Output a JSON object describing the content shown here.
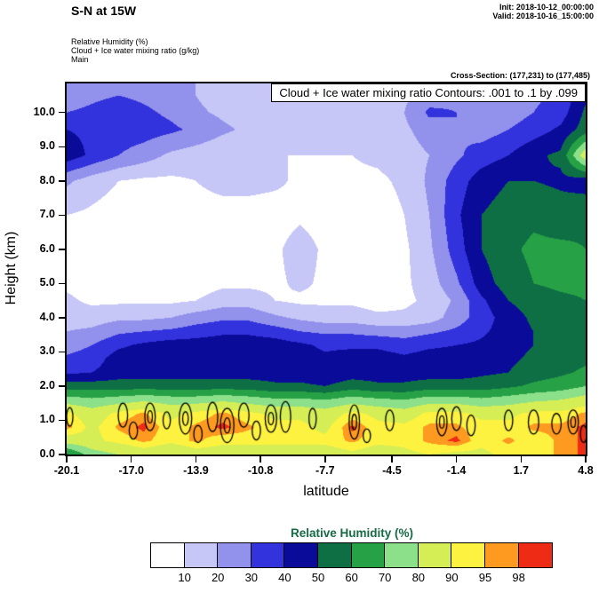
{
  "header": {
    "title": "S-N at 15W",
    "init_time": "Init: 2018-10-12_00:00:00",
    "valid_time": "Valid: 2018-10-16_15:00:00",
    "field_lines": [
      "Relative Humidity  (%)",
      "Cloud + Ice water mixing ratio   (g/kg)",
      "Main"
    ],
    "cross_section": "Cross-Section: (177,231) to (177,485)"
  },
  "colorbar": {
    "title": "Relative Humidity  (%)",
    "title_color": "#156b45",
    "tick_labels": [
      "10",
      "20",
      "30",
      "40",
      "50",
      "60",
      "70",
      "80",
      "90",
      "95",
      "98"
    ]
  },
  "chart_data": {
    "type": "heatmap",
    "title": "Cloud + Ice water mixing ratio Contours: .001 to .1 by .099",
    "xlabel": "latitude",
    "ylabel": "Height (km)",
    "x_range": [
      -20.1,
      4.8
    ],
    "y_range": [
      0,
      10.85
    ],
    "x_ticks": [
      -20.1,
      -17.0,
      -13.9,
      -10.8,
      -7.7,
      -4.5,
      -1.4,
      1.7,
      4.8
    ],
    "x_tick_labels": [
      "-20.1",
      "-17.0",
      "-13.9",
      "-10.8",
      "-7.7",
      "-4.5",
      "-1.4",
      "1.7",
      "4.8"
    ],
    "y_ticks": [
      0,
      1,
      2,
      3,
      4,
      5,
      6,
      7,
      8,
      9,
      10
    ],
    "y_tick_labels": [
      "0.0",
      "1.0",
      "2.0",
      "3.0",
      "4.0",
      "5.0",
      "6.0",
      "7.0",
      "8.0",
      "9.0",
      "10.0"
    ],
    "rh_levels": [
      10,
      20,
      30,
      40,
      50,
      60,
      70,
      80,
      90,
      95,
      98
    ],
    "level_colors": [
      "#ffffff",
      "#c6c6f7",
      "#9292ec",
      "#3333dd",
      "#0b0b9a",
      "#0e6f45",
      "#27a145",
      "#8ce08a",
      "#d5ee55",
      "#fdf23f",
      "#ff9a21",
      "#ee2c15"
    ],
    "x": [
      -20.1,
      -18.9,
      -17.6,
      -16.4,
      -15.1,
      -13.9,
      -12.6,
      -11.4,
      -10.1,
      -8.9,
      -7.7,
      -6.4,
      -5.2,
      -3.9,
      -2.7,
      -1.4,
      -0.2,
      1.1,
      2.3,
      3.6,
      4.8
    ],
    "z_levels": [
      0,
      0.4,
      0.8,
      1.2,
      1.6,
      2.0,
      2.4,
      2.8,
      3.2,
      3.6,
      4.0,
      4.5,
      5.0,
      6.0,
      7.0,
      8.0,
      8.75,
      9.5,
      10.0,
      10.5
    ],
    "rh_grid": [
      [
        58,
        75,
        80,
        85,
        80,
        85,
        85,
        85,
        85,
        85,
        85,
        88,
        85,
        88,
        90,
        88,
        88,
        92,
        92,
        96,
        99
      ],
      [
        85,
        88,
        92,
        96,
        92,
        96,
        92,
        92,
        92,
        92,
        92,
        96,
        92,
        92,
        96,
        99,
        92,
        96,
        92,
        96,
        99
      ],
      [
        97,
        88,
        96,
        99,
        92,
        96,
        99,
        96,
        92,
        92,
        88,
        99,
        92,
        92,
        96,
        96,
        92,
        92,
        96,
        96,
        99
      ],
      [
        92,
        85,
        92,
        96,
        88,
        92,
        96,
        92,
        88,
        88,
        85,
        92,
        88,
        85,
        92,
        92,
        88,
        88,
        92,
        92,
        96
      ],
      [
        75,
        72,
        75,
        78,
        75,
        75,
        78,
        75,
        72,
        72,
        70,
        75,
        72,
        70,
        75,
        75,
        72,
        75,
        78,
        80,
        85
      ],
      [
        55,
        55,
        55,
        55,
        55,
        55,
        55,
        55,
        52,
        52,
        50,
        55,
        52,
        52,
        55,
        55,
        55,
        58,
        62,
        65,
        70
      ],
      [
        38,
        40,
        45,
        45,
        45,
        45,
        45,
        45,
        45,
        45,
        42,
        45,
        45,
        45,
        45,
        45,
        48,
        50,
        55,
        58,
        62
      ],
      [
        32,
        35,
        45,
        46,
        46,
        46,
        46,
        46,
        46,
        45,
        42,
        45,
        45,
        42,
        45,
        45,
        45,
        48,
        52,
        55,
        58
      ],
      [
        25,
        30,
        38,
        42,
        45,
        45,
        46,
        46,
        45,
        42,
        38,
        38,
        38,
        35,
        38,
        40,
        42,
        46,
        50,
        52,
        55
      ],
      [
        20,
        22,
        28,
        30,
        32,
        35,
        38,
        38,
        35,
        30,
        28,
        28,
        26,
        25,
        28,
        32,
        38,
        45,
        50,
        52,
        55
      ],
      [
        15,
        15,
        18,
        18,
        20,
        25,
        28,
        28,
        22,
        18,
        15,
        15,
        12,
        12,
        15,
        25,
        35,
        45,
        52,
        55,
        58
      ],
      [
        12,
        8,
        8,
        8,
        8,
        10,
        15,
        15,
        10,
        8,
        8,
        8,
        6,
        8,
        12,
        22,
        38,
        50,
        55,
        58,
        60
      ],
      [
        8,
        5,
        5,
        5,
        5,
        5,
        8,
        8,
        8,
        12,
        8,
        5,
        5,
        8,
        15,
        28,
        45,
        55,
        60,
        62,
        62
      ],
      [
        8,
        5,
        5,
        5,
        5,
        5,
        5,
        5,
        8,
        15,
        8,
        5,
        5,
        8,
        18,
        35,
        50,
        58,
        62,
        62,
        60
      ],
      [
        10,
        8,
        5,
        5,
        5,
        5,
        5,
        5,
        5,
        8,
        5,
        5,
        5,
        10,
        20,
        38,
        50,
        55,
        58,
        55,
        58
      ],
      [
        22,
        15,
        10,
        8,
        8,
        10,
        14,
        14,
        12,
        8,
        8,
        8,
        8,
        12,
        22,
        35,
        45,
        50,
        50,
        48,
        45
      ],
      [
        46,
        38,
        30,
        25,
        18,
        15,
        12,
        10,
        10,
        10,
        10,
        10,
        12,
        15,
        20,
        28,
        35,
        40,
        48,
        52,
        88
      ],
      [
        40,
        38,
        36,
        35,
        32,
        28,
        22,
        18,
        16,
        15,
        18,
        15,
        15,
        18,
        25,
        30,
        25,
        30,
        35,
        42,
        55
      ],
      [
        30,
        32,
        35,
        32,
        28,
        22,
        18,
        15,
        15,
        15,
        20,
        15,
        15,
        20,
        32,
        30,
        22,
        25,
        30,
        35,
        52
      ],
      [
        25,
        28,
        30,
        28,
        25,
        20,
        15,
        15,
        12,
        15,
        18,
        12,
        12,
        18,
        25,
        28,
        20,
        22,
        28,
        32,
        48
      ]
    ],
    "cloud_contour_levels": [
      0.001,
      0.1
    ],
    "cloud_contour_ellipses": [
      {
        "lat": -19.95,
        "z": 1.1,
        "w": 0.3,
        "h": 0.55
      },
      {
        "lat": -17.4,
        "z": 1.15,
        "w": 0.45,
        "h": 0.7
      },
      {
        "lat": -16.9,
        "z": 0.7,
        "w": 0.4,
        "h": 0.5
      },
      {
        "lat": -16.1,
        "z": 1.1,
        "w": 0.5,
        "h": 0.8,
        "double": true
      },
      {
        "lat": -15.3,
        "z": 1.0,
        "w": 0.35,
        "h": 0.5
      },
      {
        "lat": -14.4,
        "z": 1.05,
        "w": 0.6,
        "h": 0.9,
        "double": true
      },
      {
        "lat": -13.8,
        "z": 0.6,
        "w": 0.4,
        "h": 0.5
      },
      {
        "lat": -13.1,
        "z": 1.1,
        "w": 0.5,
        "h": 0.85
      },
      {
        "lat": -12.4,
        "z": 0.85,
        "w": 0.65,
        "h": 1.0,
        "double": true
      },
      {
        "lat": -11.6,
        "z": 1.15,
        "w": 0.5,
        "h": 0.7
      },
      {
        "lat": -11.0,
        "z": 0.7,
        "w": 0.4,
        "h": 0.55
      },
      {
        "lat": -10.3,
        "z": 1.05,
        "w": 0.55,
        "h": 0.8,
        "double": true
      },
      {
        "lat": -9.6,
        "z": 1.1,
        "w": 0.5,
        "h": 0.9
      },
      {
        "lat": -8.3,
        "z": 1.05,
        "w": 0.35,
        "h": 0.6
      },
      {
        "lat": -6.3,
        "z": 0.95,
        "w": 0.5,
        "h": 1.0,
        "double": true
      },
      {
        "lat": -5.7,
        "z": 0.55,
        "w": 0.35,
        "h": 0.4
      },
      {
        "lat": -4.6,
        "z": 1.0,
        "w": 0.4,
        "h": 0.6
      },
      {
        "lat": -2.1,
        "z": 0.95,
        "w": 0.5,
        "h": 0.8,
        "double": true
      },
      {
        "lat": -1.4,
        "z": 1.05,
        "w": 0.45,
        "h": 0.7
      },
      {
        "lat": -0.7,
        "z": 0.85,
        "w": 0.4,
        "h": 0.6
      },
      {
        "lat": 1.1,
        "z": 1.0,
        "w": 0.4,
        "h": 0.6
      },
      {
        "lat": 2.3,
        "z": 0.95,
        "w": 0.5,
        "h": 0.7
      },
      {
        "lat": 3.4,
        "z": 0.9,
        "w": 0.45,
        "h": 0.6
      },
      {
        "lat": 4.2,
        "z": 0.95,
        "w": 0.5,
        "h": 0.7,
        "double": true
      },
      {
        "lat": 4.7,
        "z": 0.6,
        "w": 0.3,
        "h": 0.5
      }
    ]
  }
}
